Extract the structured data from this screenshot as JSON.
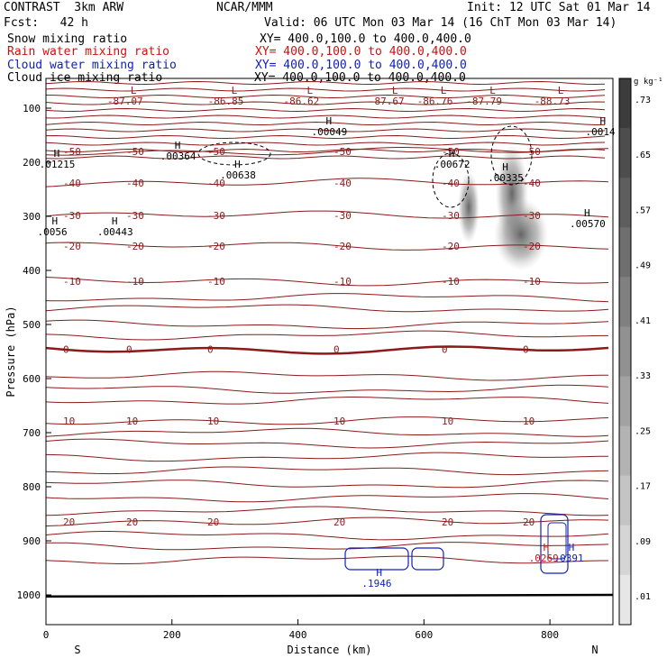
{
  "header": {
    "title_left": "CONTRAST  3km ARW",
    "fcst": "Fcst:   42 h",
    "center": "NCAR/MMM",
    "init": "Init: 12 UTC Sat 01 Mar 14",
    "valid": "Valid: 06 UTC Mon 03 Mar 14 (16 ChT Mon 03 Mar 14)",
    "fields": [
      {
        "name": "Snow mixing ratio",
        "xy": "XY= 400.0,100.0 to 400.0,400.0",
        "color": "#000000"
      },
      {
        "name": "Rain water mixing ratio",
        "xy": "XY= 400.0,100.0 to 400.0,400.0",
        "color": "#d01010"
      },
      {
        "name": "Cloud water mixing ratio",
        "xy": "XY= 400.0,100.0 to 400.0,400.0",
        "color": "#1020c0"
      },
      {
        "name": "Cloud ice mixing ratio",
        "xy": "XY= 400.0,100.0 to 400.0,400.0",
        "color": "#000000"
      }
    ]
  },
  "chart_data": {
    "type": "cross-section",
    "xlabel": "Distance (km)",
    "ylabel": "Pressure (hPa)",
    "xlim": [
      0,
      900
    ],
    "ylim_hpa": [
      1045,
      60
    ],
    "x_ticks": [
      0,
      200,
      400,
      600,
      800
    ],
    "y_ticks": [
      100,
      200,
      300,
      400,
      500,
      600,
      700,
      800,
      900,
      1000
    ],
    "direction_left": "S",
    "direction_right": "N",
    "colorbar": {
      "unit": "g kg⁻¹",
      "labels": [
        ".01",
        ".09",
        ".17",
        ".25",
        ".33",
        ".41",
        ".49",
        ".57",
        ".65",
        ".73"
      ]
    },
    "temperature_contours": [
      {
        "label": "-50",
        "p": 180
      },
      {
        "label": "-40",
        "p": 238
      },
      {
        "label": "-30",
        "p": 298
      },
      {
        "label": "-20",
        "p": 355
      },
      {
        "label": "-10",
        "p": 420
      },
      {
        "label": "0",
        "p": 546
      },
      {
        "label": "10",
        "p": 678
      },
      {
        "label": "20",
        "p": 865
      }
    ],
    "extrema_low": [
      {
        "label": "-87.07",
        "x": 140
      },
      {
        "label": "-86.85",
        "x": 300
      },
      {
        "label": "-86.62",
        "x": 420
      },
      {
        "label": "-87.67",
        "x": 555
      },
      {
        "label": "-86.76",
        "x": 632
      },
      {
        "label": "-87.79",
        "x": 710
      },
      {
        "label": "-88.73",
        "x": 818
      }
    ],
    "extrema_high": [
      {
        "label": ".01215",
        "x": 18,
        "p": 200,
        "color": "#000000"
      },
      {
        "label": ".00364",
        "x": 210,
        "p": 185,
        "color": "#000000"
      },
      {
        "label": ".00638",
        "x": 305,
        "p": 220,
        "color": "#000000"
      },
      {
        "label": ".00049",
        "x": 450,
        "p": 140,
        "color": "#000000"
      },
      {
        "label": ".00672",
        "x": 645,
        "p": 200,
        "color": "#000000"
      },
      {
        "label": ".00335",
        "x": 730,
        "p": 225,
        "color": "#000000"
      },
      {
        "label": ".0014",
        "x": 885,
        "p": 140,
        "color": "#000000"
      },
      {
        "label": ".0056",
        "x": 15,
        "p": 325,
        "color": "#000000"
      },
      {
        "label": ".00443",
        "x": 110,
        "p": 325,
        "color": "#000000"
      },
      {
        "label": ".00570",
        "x": 860,
        "p": 310,
        "color": "#000000"
      },
      {
        "label": ".1946",
        "x": 530,
        "p": 975,
        "color": "#1020c0"
      },
      {
        "label": ".0269",
        "x": 795,
        "p": 928,
        "color": "#d01010"
      },
      {
        "label": ".0391",
        "x": 835,
        "p": 928,
        "color": "#1020c0"
      }
    ]
  }
}
